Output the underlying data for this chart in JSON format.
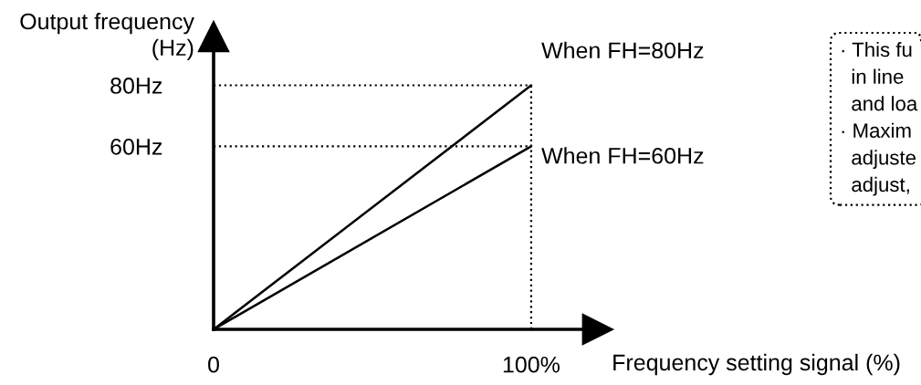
{
  "chart_data": {
    "type": "line",
    "xlabel": "Frequency setting signal (%)",
    "ylabel": "Output frequency\n(Hz)",
    "x": [
      0,
      100
    ],
    "series": [
      {
        "color": "#000000",
        "values": [
          0,
          80
        ]
      },
      {
        "color": "#000000",
        "values": [
          0,
          60
        ]
      }
    ],
    "xlim": [
      0,
      121
    ],
    "ylim": [
      0,
      96
    ],
    "xticks": [
      0,
      {
        "value": 100,
        "label": "100%"
      }
    ],
    "yticks": [
      {
        "value": 60,
        "label": "60Hz"
      },
      {
        "value": 80,
        "label": "80Hz"
      }
    ],
    "ref_lines": [
      {
        "axis": "y",
        "value": 80,
        "color": "#000000",
        "line_style": "dotted"
      },
      {
        "axis": "y",
        "value": 60,
        "color": "#000000",
        "line_style": "dotted"
      },
      {
        "axis": "x",
        "value": 100,
        "color": "#000000",
        "line_style": "dotted"
      }
    ],
    "annotations": [
      {
        "text": "When FH=80Hz",
        "x": 100,
        "y": 80
      },
      {
        "text": "When FH=60Hz",
        "x": 100,
        "y": 60
      },
      "· This fu\n  in line\n  and loa\n· Maxim\n  adjuste\n  adjust,"
    ],
    "grid": false
  }
}
